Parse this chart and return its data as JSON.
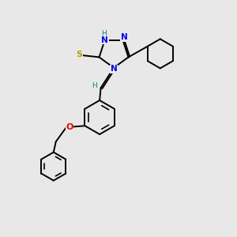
{
  "bg_color": "#e8e8e8",
  "bond_color": "#000000",
  "N_color": "#0000ee",
  "S_color": "#b8a000",
  "O_color": "#ee0000",
  "H_color": "#008888",
  "lw": 1.4,
  "figsize": [
    3.0,
    3.0
  ],
  "dpi": 100,
  "xlim": [
    0,
    10
  ],
  "ylim": [
    0,
    10
  ]
}
